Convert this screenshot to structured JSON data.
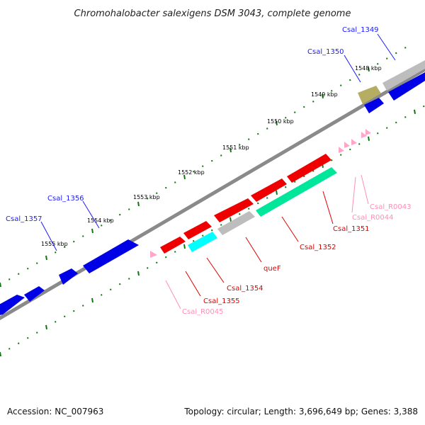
{
  "title": "Chromohalobacter salexigens DSM 3043, complete genome",
  "footer": {
    "accession": "Accession: NC_007963",
    "summary": "Topology: circular; Length: 3,696,649 bp; Genes: 3,388"
  },
  "scale_labels": [
    "1548 kbp",
    "1549 kbp",
    "1550 kbp",
    "1551 kbp",
    "1552 kbp",
    "1553 kbp",
    "1554 kbp",
    "1555 kbp"
  ],
  "gene_labels": [
    {
      "text": "Csal_1349",
      "color": "#1a1aff"
    },
    {
      "text": "Csal_1350",
      "color": "#1a1aff"
    },
    {
      "text": "Csal_1356",
      "color": "#1a1aff"
    },
    {
      "text": "Csal_1357",
      "color": "#1a1aff"
    },
    {
      "text": "Csal_R0043",
      "color": "#ff8fb5"
    },
    {
      "text": "Csal_R0044",
      "color": "#ff8fb5"
    },
    {
      "text": "Csal_1351",
      "color": "#e00000"
    },
    {
      "text": "Csal_1352",
      "color": "#e00000"
    },
    {
      "text": "queF",
      "color": "#e00000"
    },
    {
      "text": "Csal_1354",
      "color": "#e00000"
    },
    {
      "text": "Csal_1355",
      "color": "#e00000"
    },
    {
      "text": "Csal_R0045",
      "color": "#ff8fb5"
    }
  ],
  "colors": {
    "forward_gene": "#0000e6",
    "reverse_gene": "#ee0000",
    "backbone": "#888888",
    "ticks": "#117711",
    "grey_gene": "#bdbdbd",
    "olive_gene": "#b5ad62",
    "cyan_gene": "#00ffff",
    "green_gene": "#00e69a",
    "rna_gene": "#ffa6c9"
  }
}
